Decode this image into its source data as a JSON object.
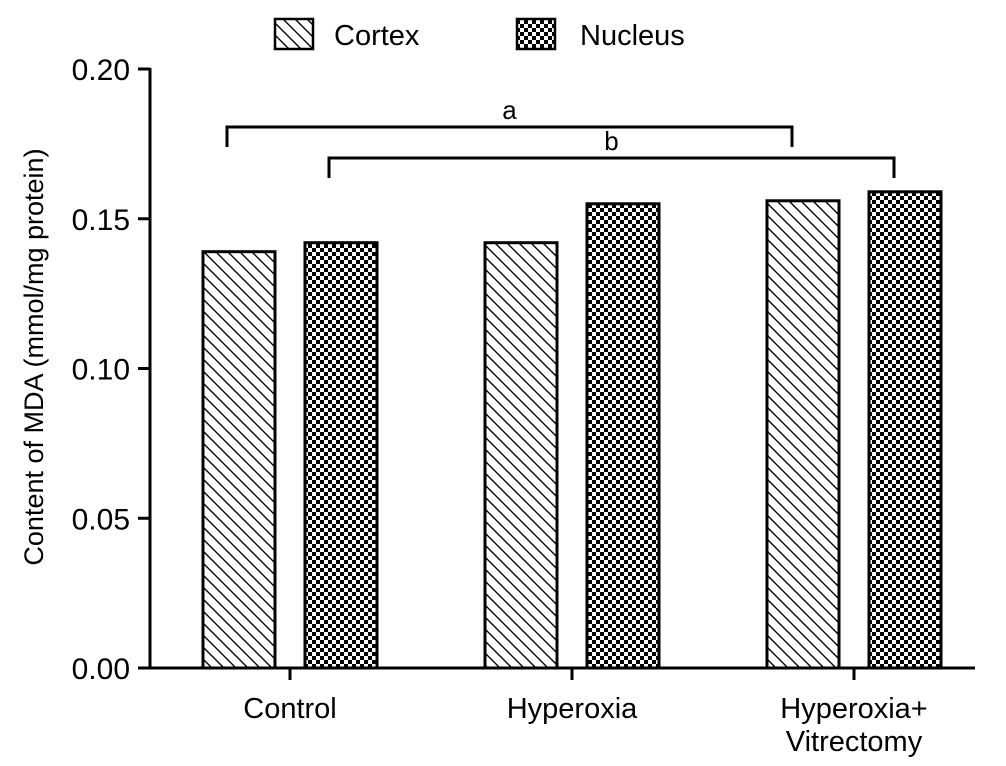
{
  "chart_data": {
    "type": "bar",
    "categories": [
      "Control",
      "Hyperoxia",
      "Hyperoxia+\nVitrectomy"
    ],
    "series": [
      {
        "name": "Cortex",
        "pattern": "diagonal-hatch",
        "values": [
          0.139,
          0.142,
          0.156
        ]
      },
      {
        "name": "Nucleus",
        "pattern": "checkerboard",
        "values": [
          0.142,
          0.155,
          0.159
        ]
      }
    ],
    "title": "",
    "xlabel": "",
    "ylabel": "Content of MDA (mmol/mg protein)",
    "ylim": [
      0,
      0.2
    ],
    "yticks": [
      "0.00",
      "0.05",
      "0.10",
      "0.15",
      "0.20"
    ],
    "legend_position": "top",
    "grid": false,
    "significance": [
      {
        "label": "a",
        "from": "Control / Cortex",
        "to": "Hyperoxia+Vitrectomy / Cortex"
      },
      {
        "label": "b",
        "from": "Control / Nucleus",
        "to": "Hyperoxia+Vitrectomy / Nucleus"
      }
    ],
    "colors": {
      "bar_stroke": "#000000",
      "fill_background": "#ffffff",
      "pattern_ink": "#000000"
    }
  }
}
